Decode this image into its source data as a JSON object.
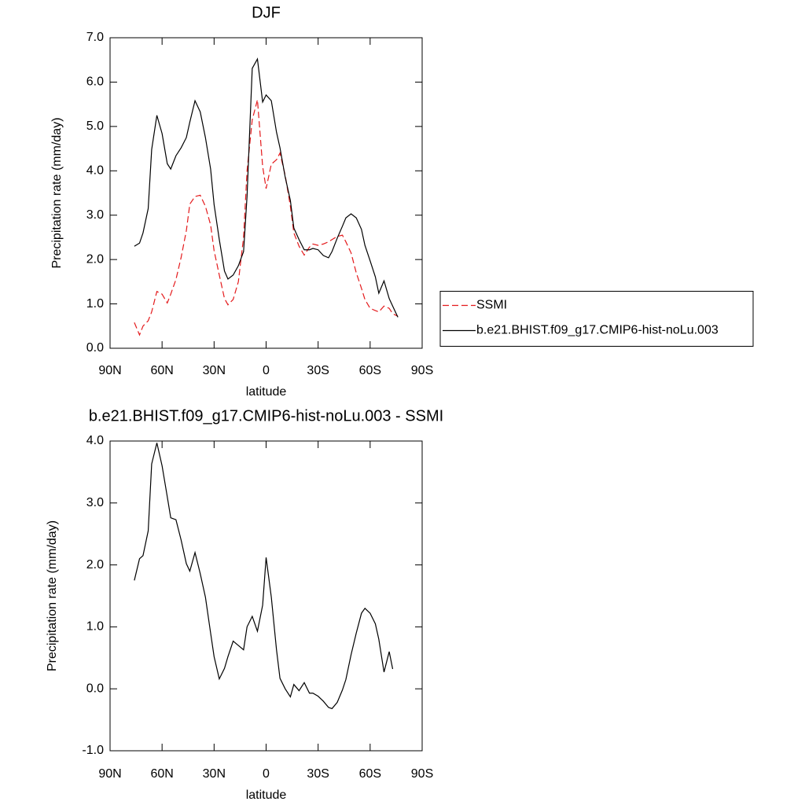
{
  "chart_data": [
    {
      "type": "line",
      "title": "DJF",
      "x_label": "latitude",
      "y_label": "Precipitation rate (mm/day)",
      "x": [
        76,
        73,
        71,
        68,
        66,
        63,
        60,
        57,
        55,
        52,
        49,
        46,
        44,
        41,
        38,
        35,
        32,
        30,
        27,
        24,
        22,
        19,
        16,
        13,
        11,
        8,
        5,
        2,
        0,
        -3,
        -6,
        -8,
        -11,
        -14,
        -16,
        -19,
        -22,
        -25,
        -27,
        -30,
        -33,
        -36,
        -38,
        -41,
        -44,
        -46,
        -49,
        -52,
        -55,
        -57,
        -60,
        -63,
        -65,
        -68,
        -71,
        -73,
        -76
      ],
      "series": [
        {
          "name": "SSMI",
          "color": "#e41a1c",
          "line_style": "dashed",
          "values": [
            0.58,
            0.3,
            0.5,
            0.62,
            0.82,
            1.28,
            1.22,
            1.02,
            1.22,
            1.55,
            2.05,
            2.65,
            3.25,
            3.42,
            3.45,
            3.2,
            2.78,
            2.2,
            1.65,
            1.12,
            0.98,
            1.1,
            1.5,
            2.5,
            4.0,
            5.15,
            5.6,
            4.1,
            3.6,
            4.15,
            4.25,
            4.4,
            3.9,
            3.2,
            2.6,
            2.3,
            2.1,
            2.28,
            2.35,
            2.32,
            2.35,
            2.4,
            2.45,
            2.52,
            2.55,
            2.4,
            2.15,
            1.7,
            1.35,
            1.1,
            0.9,
            0.85,
            0.82,
            0.95,
            0.9,
            0.78,
            0.72
          ]
        },
        {
          "name": "b.e21.BHIST.f09_g17.CMIP6-hist-noLu.003",
          "color": "#000000",
          "line_style": "solid",
          "values": [
            2.3,
            2.37,
            2.6,
            3.15,
            4.48,
            5.25,
            4.84,
            4.16,
            4.04,
            4.34,
            4.52,
            4.75,
            5.1,
            5.58,
            5.33,
            4.75,
            4.04,
            3.24,
            2.45,
            1.74,
            1.56,
            1.65,
            1.86,
            2.18,
            3.42,
            6.31,
            6.52,
            5.55,
            5.71,
            5.58,
            4.87,
            4.52,
            3.86,
            3.33,
            2.71,
            2.45,
            2.22,
            2.22,
            2.25,
            2.22,
            2.09,
            2.04,
            2.18,
            2.48,
            2.75,
            2.94,
            3.03,
            2.94,
            2.68,
            2.32,
            1.97,
            1.61,
            1.24,
            1.52,
            1.12,
            0.95,
            0.7
          ]
        }
      ],
      "xlim": [
        90,
        -90
      ],
      "xticks": [
        {
          "value": 90,
          "label": "90N"
        },
        {
          "value": 60,
          "label": "60N"
        },
        {
          "value": 30,
          "label": "30N"
        },
        0,
        {
          "value": -30,
          "label": "30S"
        },
        {
          "value": -60,
          "label": "60S"
        },
        {
          "value": -90,
          "label": "90S"
        }
      ],
      "ylim": [
        0,
        7
      ],
      "yticks": [
        {
          "value": 0,
          "label": "0.0"
        },
        {
          "value": 1,
          "label": "1.0"
        },
        {
          "value": 2,
          "label": "2.0"
        },
        {
          "value": 3,
          "label": "3.0"
        },
        {
          "value": 4,
          "label": "4.0"
        },
        {
          "value": 5,
          "label": "5.0"
        },
        {
          "value": 6,
          "label": "6.0"
        },
        {
          "value": 7,
          "label": "7.0"
        }
      ],
      "legend": "right"
    },
    {
      "type": "line",
      "title": "b.e21.BHIST.f09_g17.CMIP6-hist-noLu.003 - SSMI",
      "x_label": "latitude",
      "y_label": "Precipitation rate (mm/day)",
      "x": [
        76,
        73,
        71,
        68,
        66,
        63,
        60,
        57,
        55,
        52,
        49,
        46,
        44,
        41,
        38,
        35,
        32,
        30,
        27,
        24,
        22,
        19,
        16,
        13,
        11,
        8,
        5,
        2,
        0,
        -3,
        -6,
        -8,
        -11,
        -14,
        -16,
        -19,
        -22,
        -25,
        -27,
        -30,
        -33,
        -36,
        -38,
        -41,
        -44,
        -46,
        -49,
        -52,
        -55,
        -57,
        -60,
        -63,
        -65,
        -68,
        -71,
        -73,
        -76
      ],
      "series": [
        {
          "color": "#000000",
          "line_style": "solid",
          "values": [
            1.75,
            2.1,
            2.15,
            2.55,
            3.63,
            3.97,
            3.6,
            3.1,
            2.76,
            2.73,
            2.4,
            2.02,
            1.9,
            2.2,
            1.86,
            1.48,
            0.9,
            0.52,
            0.16,
            0.33,
            0.52,
            0.77,
            0.7,
            0.63,
            1.0,
            1.17,
            0.93,
            1.35,
            2.12,
            1.48,
            0.63,
            0.17,
            0.0,
            -0.13,
            0.07,
            -0.03,
            0.1,
            -0.07,
            -0.07,
            -0.12,
            -0.2,
            -0.3,
            -0.32,
            -0.22,
            -0.02,
            0.15,
            0.55,
            0.9,
            1.22,
            1.3,
            1.22,
            1.05,
            0.8,
            0.27,
            0.6,
            0.32,
            null
          ]
        }
      ],
      "xlim": [
        90,
        -90
      ],
      "xticks": [
        {
          "value": 90,
          "label": "90N"
        },
        {
          "value": 60,
          "label": "60N"
        },
        {
          "value": 30,
          "label": "30N"
        },
        0,
        {
          "value": -30,
          "label": "30S"
        },
        {
          "value": -60,
          "label": "60S"
        },
        {
          "value": -90,
          "label": "90S"
        }
      ],
      "ylim": [
        -1,
        4
      ],
      "yticks": [
        {
          "value": -1,
          "label": "-1.0"
        },
        {
          "value": 0,
          "label": "0.0"
        },
        {
          "value": 1,
          "label": "1.0"
        },
        {
          "value": 2,
          "label": "2.0"
        },
        {
          "value": 3,
          "label": "3.0"
        },
        {
          "value": 4,
          "label": "4.0"
        }
      ]
    }
  ]
}
